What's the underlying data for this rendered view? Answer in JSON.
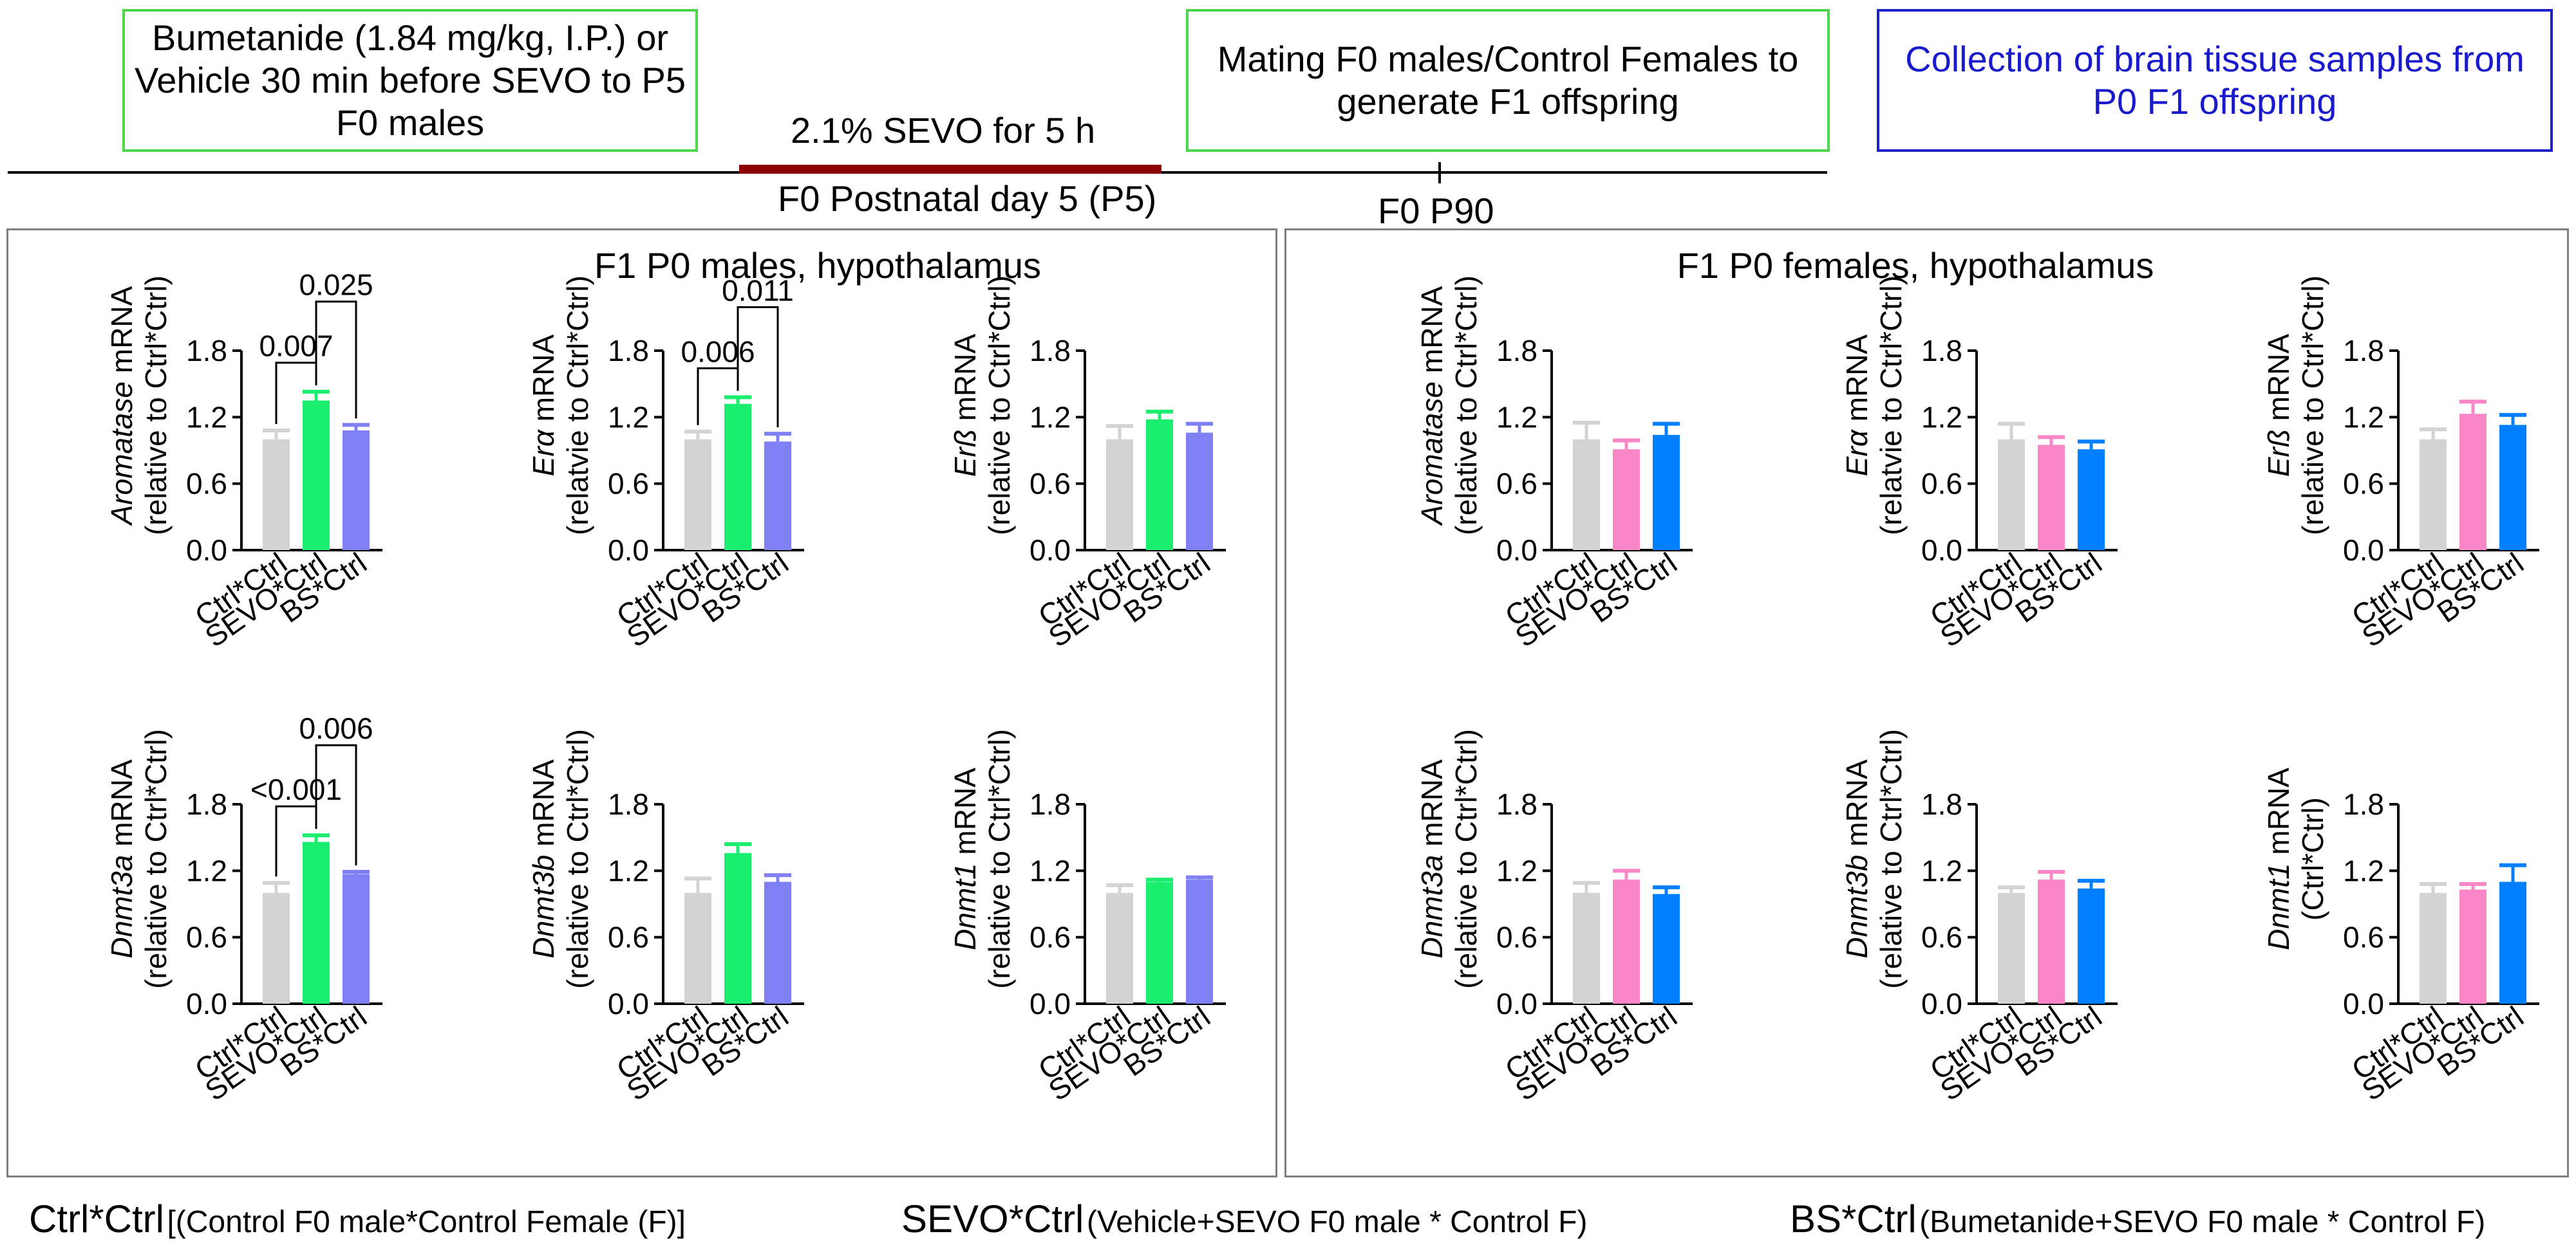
{
  "timeline": {
    "bumetanide_box": "Bumetanide (1.84 mg/kg, I.P.) or Vehicle 30 min before SEVO to P5 F0 males",
    "sevo_label": "2.1% SEVO for 5 h",
    "p5_label": "F0 Postnatal day 5 (P5)",
    "p90_label": "F0 P90",
    "mating_box": "Mating F0 males/Control Females to generate F1 offspring",
    "collection_box": "Collection of brain tissue samples from P0 F1 offspring",
    "colors": {
      "green_border": "#4cd64c",
      "blue_border": "#2020c8",
      "blue_text": "#1a1acd",
      "sevo_bar": "#8b0000"
    }
  },
  "panels": {
    "male_title": "F1 P0 males, hypothalamus",
    "female_title": "F1 P0 females, hypothalamus"
  },
  "legend": {
    "ctrl_name": "Ctrl*Ctrl",
    "ctrl_desc": "[(Control F0 male*Control Female (F)]",
    "sevo_name": "SEVO*Ctrl",
    "sevo_desc": "(Vehicle+SEVO F0 male * Control F)",
    "bs_name": "BS*Ctrl",
    "bs_desc": "(Bumetanide+SEVO F0 male * Control F)"
  },
  "chart_data": [
    {
      "id": "m-aromatase",
      "type": "bar",
      "group": "males",
      "gene": "Aromatase",
      "ylabel_tail": " mRNA",
      "ylabel2": "(relative to Ctrl*Ctrl)",
      "categories": [
        "Ctrl*Ctrl",
        "SEVO*Ctrl",
        "BS*Ctrl"
      ],
      "values": [
        1.0,
        1.35,
        1.08
      ],
      "errors": [
        0.08,
        0.08,
        0.05
      ],
      "colors": [
        "#d3d3d3",
        "#1aee6e",
        "#8080f5"
      ],
      "ylim": [
        0,
        1.8
      ],
      "yticks": [
        "0.0",
        "0.6",
        "1.2",
        "1.8"
      ],
      "comparisons": [
        {
          "from": 0,
          "to": 1,
          "label": "0.007"
        },
        {
          "from": 1,
          "to": 2,
          "label": "0.025"
        }
      ]
    },
    {
      "id": "m-era",
      "type": "bar",
      "group": "males",
      "gene": "Erα",
      "ylabel_tail": " mRNA",
      "ylabel2": "(relatvie to Ctrl*Ctrl)",
      "categories": [
        "Ctrl*Ctrl",
        "SEVO*Ctrl",
        "BS*Ctrl"
      ],
      "values": [
        1.0,
        1.32,
        0.98
      ],
      "errors": [
        0.07,
        0.06,
        0.07
      ],
      "colors": [
        "#d3d3d3",
        "#1aee6e",
        "#8080f5"
      ],
      "ylim": [
        0,
        1.8
      ],
      "yticks": [
        "0.0",
        "0.6",
        "1.2",
        "1.8"
      ],
      "comparisons": [
        {
          "from": 0,
          "to": 1,
          "label": "0.006"
        },
        {
          "from": 1,
          "to": 2,
          "label": "0.011"
        }
      ]
    },
    {
      "id": "m-erb",
      "type": "bar",
      "group": "males",
      "gene": "Erß",
      "ylabel_tail": " mRNA",
      "ylabel2": "(relative to Ctrl*Ctrl)",
      "categories": [
        "Ctrl*Ctrl",
        "SEVO*Ctrl",
        "BS*Ctrl"
      ],
      "values": [
        1.0,
        1.18,
        1.06
      ],
      "errors": [
        0.12,
        0.07,
        0.08
      ],
      "colors": [
        "#d3d3d3",
        "#1aee6e",
        "#8080f5"
      ],
      "ylim": [
        0,
        1.8
      ],
      "yticks": [
        "0.0",
        "0.6",
        "1.2",
        "1.8"
      ],
      "comparisons": []
    },
    {
      "id": "m-dnmt3a",
      "type": "bar",
      "group": "males",
      "gene": "Dnmt3a",
      "ylabel_tail": " mRNA",
      "ylabel2": "(relative to Ctrl*Ctrl)",
      "categories": [
        "Ctrl*Ctrl",
        "SEVO*Ctrl",
        "BS*Ctrl"
      ],
      "values": [
        1.0,
        1.46,
        1.17
      ],
      "errors": [
        0.09,
        0.06,
        0.02
      ],
      "colors": [
        "#d3d3d3",
        "#1aee6e",
        "#8080f5"
      ],
      "ylim": [
        0,
        1.8
      ],
      "yticks": [
        "0.0",
        "0.6",
        "1.2",
        "1.8"
      ],
      "comparisons": [
        {
          "from": 0,
          "to": 1,
          "label": "<0.001"
        },
        {
          "from": 1,
          "to": 2,
          "label": "0.006"
        }
      ]
    },
    {
      "id": "m-dnmt3b",
      "type": "bar",
      "group": "males",
      "gene": "Dnmt3b",
      "ylabel_tail": " mRNA",
      "ylabel2": "(relative to Ctrl*Ctrl)",
      "categories": [
        "Ctrl*Ctrl",
        "SEVO*Ctrl",
        "BS*Ctrl"
      ],
      "values": [
        1.0,
        1.36,
        1.1
      ],
      "errors": [
        0.13,
        0.08,
        0.06
      ],
      "colors": [
        "#d3d3d3",
        "#1aee6e",
        "#8080f5"
      ],
      "ylim": [
        0,
        1.8
      ],
      "yticks": [
        "0.0",
        "0.6",
        "1.2",
        "1.8"
      ],
      "comparisons": []
    },
    {
      "id": "m-dnmt1",
      "type": "bar",
      "group": "males",
      "gene": "Dnmt1",
      "ylabel_tail": " mRNA",
      "ylabel2": "(relative to Ctrl*Ctrl)",
      "categories": [
        "Ctrl*Ctrl",
        "SEVO*Ctrl",
        "BS*Ctrl"
      ],
      "values": [
        1.0,
        1.1,
        1.12
      ],
      "errors": [
        0.07,
        0.02,
        0.02
      ],
      "colors": [
        "#d3d3d3",
        "#1aee6e",
        "#8080f5"
      ],
      "ylim": [
        0,
        1.8
      ],
      "yticks": [
        "0.0",
        "0.6",
        "1.2",
        "1.8"
      ],
      "comparisons": []
    },
    {
      "id": "f-aromatase",
      "type": "bar",
      "group": "females",
      "gene": "Aromatase",
      "ylabel_tail": " mRNA",
      "ylabel2": "(relative to Ctrl*Ctrl)",
      "categories": [
        "Ctrl*Ctrl",
        "SEVO*Ctrl",
        "BS*Ctrl"
      ],
      "values": [
        1.0,
        0.91,
        1.04
      ],
      "errors": [
        0.15,
        0.08,
        0.1
      ],
      "colors": [
        "#d3d3d3",
        "#f986c6",
        "#0080ff"
      ],
      "ylim": [
        0,
        1.8
      ],
      "yticks": [
        "0.0",
        "0.6",
        "1.2",
        "1.8"
      ],
      "comparisons": []
    },
    {
      "id": "f-era",
      "type": "bar",
      "group": "females",
      "gene": "Erα",
      "ylabel_tail": " mRNA",
      "ylabel2": "(relatvie to Ctrl*Ctrl)",
      "categories": [
        "Ctrl*Ctrl",
        "SEVO*Ctrl",
        "BS*Ctrl"
      ],
      "values": [
        1.0,
        0.95,
        0.91
      ],
      "errors": [
        0.14,
        0.07,
        0.07
      ],
      "colors": [
        "#d3d3d3",
        "#f986c6",
        "#0080ff"
      ],
      "ylim": [
        0,
        1.8
      ],
      "yticks": [
        "0.0",
        "0.6",
        "1.2",
        "1.8"
      ],
      "comparisons": []
    },
    {
      "id": "f-erb",
      "type": "bar",
      "group": "females",
      "gene": "Erß",
      "ylabel_tail": " mRNA",
      "ylabel2": "(relative to Ctrl*Ctrl)",
      "categories": [
        "Ctrl*Ctrl",
        "SEVO*Ctrl",
        "BS*Ctrl"
      ],
      "values": [
        1.0,
        1.23,
        1.13
      ],
      "errors": [
        0.09,
        0.11,
        0.09
      ],
      "colors": [
        "#d3d3d3",
        "#f986c6",
        "#0080ff"
      ],
      "ylim": [
        0,
        1.8
      ],
      "yticks": [
        "0.0",
        "0.6",
        "1.2",
        "1.8"
      ],
      "comparisons": []
    },
    {
      "id": "f-dnmt3a",
      "type": "bar",
      "group": "females",
      "gene": "Dnmt3a",
      "ylabel_tail": " mRNA",
      "ylabel2": "(relative to Ctrl*Ctrl)",
      "categories": [
        "Ctrl*Ctrl",
        "SEVO*Ctrl",
        "BS*Ctrl"
      ],
      "values": [
        1.0,
        1.12,
        0.99
      ],
      "errors": [
        0.09,
        0.08,
        0.06
      ],
      "colors": [
        "#d3d3d3",
        "#f986c6",
        "#0080ff"
      ],
      "ylim": [
        0,
        1.8
      ],
      "yticks": [
        "0.0",
        "0.6",
        "1.2",
        "1.8"
      ],
      "comparisons": []
    },
    {
      "id": "f-dnmt3b",
      "type": "bar",
      "group": "females",
      "gene": "Dnmt3b",
      "ylabel_tail": " mRNA",
      "ylabel2": "(relative to Ctrl*Ctrl)",
      "categories": [
        "Ctrl*Ctrl",
        "SEVO*Ctrl",
        "BS*Ctrl"
      ],
      "values": [
        1.0,
        1.12,
        1.04
      ],
      "errors": [
        0.05,
        0.07,
        0.07
      ],
      "colors": [
        "#d3d3d3",
        "#f986c6",
        "#0080ff"
      ],
      "ylim": [
        0,
        1.8
      ],
      "yticks": [
        "0.0",
        "0.6",
        "1.2",
        "1.8"
      ],
      "comparisons": []
    },
    {
      "id": "f-dnmt1",
      "type": "bar",
      "group": "females",
      "gene": "Dnmt1",
      "ylabel_tail": " mRNA",
      "ylabel2": "(Ctrl*Ctrl)",
      "categories": [
        "Ctrl*Ctrl",
        "SEVO*Ctrl",
        "BS*Ctrl"
      ],
      "values": [
        1.0,
        1.03,
        1.1
      ],
      "errors": [
        0.08,
        0.05,
        0.15
      ],
      "colors": [
        "#d3d3d3",
        "#f986c6",
        "#0080ff"
      ],
      "ylim": [
        0,
        1.8
      ],
      "yticks": [
        "0.0",
        "0.6",
        "1.2",
        "1.8"
      ],
      "comparisons": []
    }
  ]
}
